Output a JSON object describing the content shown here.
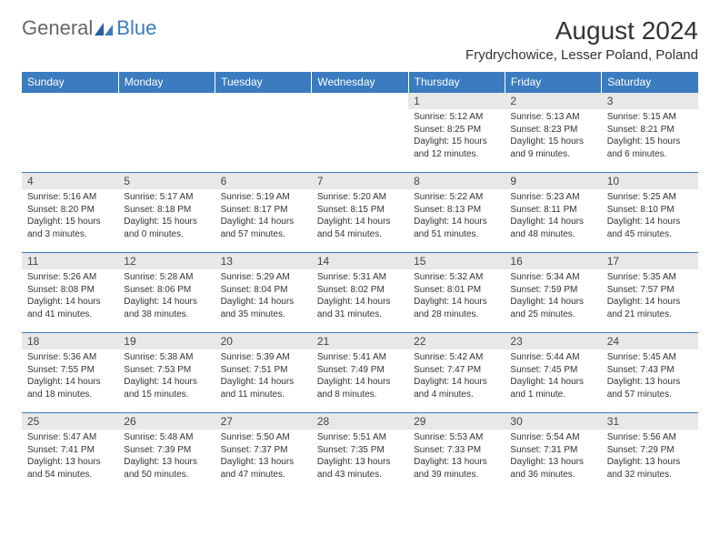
{
  "logo": {
    "text1": "General",
    "text2": "Blue"
  },
  "title": "August 2024",
  "location": "Frydrychowice, Lesser Poland, Poland",
  "colors": {
    "header_bg": "#3b7bbf",
    "header_text": "#ffffff",
    "daynum_bg": "#e8e8e8",
    "border": "#3b7bbf",
    "body_text": "#333333",
    "logo_gray": "#666666",
    "logo_blue": "#3b7bbf",
    "page_bg": "#ffffff"
  },
  "typography": {
    "title_fontsize": 28,
    "location_fontsize": 15,
    "dayheader_fontsize": 12,
    "daynum_fontsize": 12,
    "cell_fontsize": 10
  },
  "dayHeaders": [
    "Sunday",
    "Monday",
    "Tuesday",
    "Wednesday",
    "Thursday",
    "Friday",
    "Saturday"
  ],
  "weeks": [
    [
      {
        "empty": true
      },
      {
        "empty": true
      },
      {
        "empty": true
      },
      {
        "empty": true
      },
      {
        "num": "1",
        "sunrise": "Sunrise: 5:12 AM",
        "sunset": "Sunset: 8:25 PM",
        "daylight1": "Daylight: 15 hours",
        "daylight2": "and 12 minutes."
      },
      {
        "num": "2",
        "sunrise": "Sunrise: 5:13 AM",
        "sunset": "Sunset: 8:23 PM",
        "daylight1": "Daylight: 15 hours",
        "daylight2": "and 9 minutes."
      },
      {
        "num": "3",
        "sunrise": "Sunrise: 5:15 AM",
        "sunset": "Sunset: 8:21 PM",
        "daylight1": "Daylight: 15 hours",
        "daylight2": "and 6 minutes."
      }
    ],
    [
      {
        "num": "4",
        "sunrise": "Sunrise: 5:16 AM",
        "sunset": "Sunset: 8:20 PM",
        "daylight1": "Daylight: 15 hours",
        "daylight2": "and 3 minutes."
      },
      {
        "num": "5",
        "sunrise": "Sunrise: 5:17 AM",
        "sunset": "Sunset: 8:18 PM",
        "daylight1": "Daylight: 15 hours",
        "daylight2": "and 0 minutes."
      },
      {
        "num": "6",
        "sunrise": "Sunrise: 5:19 AM",
        "sunset": "Sunset: 8:17 PM",
        "daylight1": "Daylight: 14 hours",
        "daylight2": "and 57 minutes."
      },
      {
        "num": "7",
        "sunrise": "Sunrise: 5:20 AM",
        "sunset": "Sunset: 8:15 PM",
        "daylight1": "Daylight: 14 hours",
        "daylight2": "and 54 minutes."
      },
      {
        "num": "8",
        "sunrise": "Sunrise: 5:22 AM",
        "sunset": "Sunset: 8:13 PM",
        "daylight1": "Daylight: 14 hours",
        "daylight2": "and 51 minutes."
      },
      {
        "num": "9",
        "sunrise": "Sunrise: 5:23 AM",
        "sunset": "Sunset: 8:11 PM",
        "daylight1": "Daylight: 14 hours",
        "daylight2": "and 48 minutes."
      },
      {
        "num": "10",
        "sunrise": "Sunrise: 5:25 AM",
        "sunset": "Sunset: 8:10 PM",
        "daylight1": "Daylight: 14 hours",
        "daylight2": "and 45 minutes."
      }
    ],
    [
      {
        "num": "11",
        "sunrise": "Sunrise: 5:26 AM",
        "sunset": "Sunset: 8:08 PM",
        "daylight1": "Daylight: 14 hours",
        "daylight2": "and 41 minutes."
      },
      {
        "num": "12",
        "sunrise": "Sunrise: 5:28 AM",
        "sunset": "Sunset: 8:06 PM",
        "daylight1": "Daylight: 14 hours",
        "daylight2": "and 38 minutes."
      },
      {
        "num": "13",
        "sunrise": "Sunrise: 5:29 AM",
        "sunset": "Sunset: 8:04 PM",
        "daylight1": "Daylight: 14 hours",
        "daylight2": "and 35 minutes."
      },
      {
        "num": "14",
        "sunrise": "Sunrise: 5:31 AM",
        "sunset": "Sunset: 8:02 PM",
        "daylight1": "Daylight: 14 hours",
        "daylight2": "and 31 minutes."
      },
      {
        "num": "15",
        "sunrise": "Sunrise: 5:32 AM",
        "sunset": "Sunset: 8:01 PM",
        "daylight1": "Daylight: 14 hours",
        "daylight2": "and 28 minutes."
      },
      {
        "num": "16",
        "sunrise": "Sunrise: 5:34 AM",
        "sunset": "Sunset: 7:59 PM",
        "daylight1": "Daylight: 14 hours",
        "daylight2": "and 25 minutes."
      },
      {
        "num": "17",
        "sunrise": "Sunrise: 5:35 AM",
        "sunset": "Sunset: 7:57 PM",
        "daylight1": "Daylight: 14 hours",
        "daylight2": "and 21 minutes."
      }
    ],
    [
      {
        "num": "18",
        "sunrise": "Sunrise: 5:36 AM",
        "sunset": "Sunset: 7:55 PM",
        "daylight1": "Daylight: 14 hours",
        "daylight2": "and 18 minutes."
      },
      {
        "num": "19",
        "sunrise": "Sunrise: 5:38 AM",
        "sunset": "Sunset: 7:53 PM",
        "daylight1": "Daylight: 14 hours",
        "daylight2": "and 15 minutes."
      },
      {
        "num": "20",
        "sunrise": "Sunrise: 5:39 AM",
        "sunset": "Sunset: 7:51 PM",
        "daylight1": "Daylight: 14 hours",
        "daylight2": "and 11 minutes."
      },
      {
        "num": "21",
        "sunrise": "Sunrise: 5:41 AM",
        "sunset": "Sunset: 7:49 PM",
        "daylight1": "Daylight: 14 hours",
        "daylight2": "and 8 minutes."
      },
      {
        "num": "22",
        "sunrise": "Sunrise: 5:42 AM",
        "sunset": "Sunset: 7:47 PM",
        "daylight1": "Daylight: 14 hours",
        "daylight2": "and 4 minutes."
      },
      {
        "num": "23",
        "sunrise": "Sunrise: 5:44 AM",
        "sunset": "Sunset: 7:45 PM",
        "daylight1": "Daylight: 14 hours",
        "daylight2": "and 1 minute."
      },
      {
        "num": "24",
        "sunrise": "Sunrise: 5:45 AM",
        "sunset": "Sunset: 7:43 PM",
        "daylight1": "Daylight: 13 hours",
        "daylight2": "and 57 minutes."
      }
    ],
    [
      {
        "num": "25",
        "sunrise": "Sunrise: 5:47 AM",
        "sunset": "Sunset: 7:41 PM",
        "daylight1": "Daylight: 13 hours",
        "daylight2": "and 54 minutes."
      },
      {
        "num": "26",
        "sunrise": "Sunrise: 5:48 AM",
        "sunset": "Sunset: 7:39 PM",
        "daylight1": "Daylight: 13 hours",
        "daylight2": "and 50 minutes."
      },
      {
        "num": "27",
        "sunrise": "Sunrise: 5:50 AM",
        "sunset": "Sunset: 7:37 PM",
        "daylight1": "Daylight: 13 hours",
        "daylight2": "and 47 minutes."
      },
      {
        "num": "28",
        "sunrise": "Sunrise: 5:51 AM",
        "sunset": "Sunset: 7:35 PM",
        "daylight1": "Daylight: 13 hours",
        "daylight2": "and 43 minutes."
      },
      {
        "num": "29",
        "sunrise": "Sunrise: 5:53 AM",
        "sunset": "Sunset: 7:33 PM",
        "daylight1": "Daylight: 13 hours",
        "daylight2": "and 39 minutes."
      },
      {
        "num": "30",
        "sunrise": "Sunrise: 5:54 AM",
        "sunset": "Sunset: 7:31 PM",
        "daylight1": "Daylight: 13 hours",
        "daylight2": "and 36 minutes."
      },
      {
        "num": "31",
        "sunrise": "Sunrise: 5:56 AM",
        "sunset": "Sunset: 7:29 PM",
        "daylight1": "Daylight: 13 hours",
        "daylight2": "and 32 minutes."
      }
    ]
  ]
}
